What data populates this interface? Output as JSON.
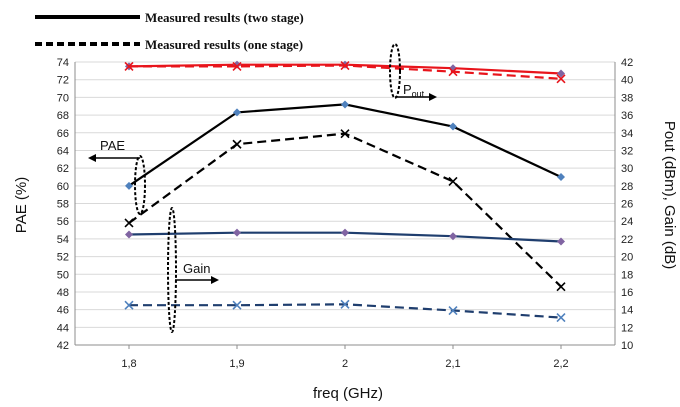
{
  "chart_data": {
    "type": "line",
    "xlabel": "freq (GHz)",
    "ylabel_left": "PAE (%)",
    "ylabel_right": "Pout (dBm), Gain (dB)",
    "x": [
      1.8,
      1.9,
      2.0,
      2.1,
      2.2
    ],
    "x_tick_labels": [
      "1,8",
      "1,9",
      "2",
      "2,1",
      "2,2"
    ],
    "xlim": [
      1.75,
      2.25
    ],
    "ylim_left": [
      42,
      74
    ],
    "ylim_right": [
      10,
      42
    ],
    "left_ticks": [
      "42",
      "44",
      "46",
      "48",
      "50",
      "52",
      "54",
      "56",
      "58",
      "60",
      "62",
      "64",
      "66",
      "68",
      "70",
      "72",
      "74"
    ],
    "right_ticks": [
      "10",
      "12",
      "14",
      "16",
      "18",
      "20",
      "22",
      "24",
      "26",
      "28",
      "30",
      "32",
      "34",
      "36",
      "38",
      "40",
      "42"
    ],
    "grid": "horizontal",
    "legend": [
      {
        "label": "Measured results (two stage)",
        "style": "solid"
      },
      {
        "label": "Measured results (one stage)",
        "style": "dashed"
      }
    ],
    "annotations": [
      {
        "text": "PAE"
      },
      {
        "text": "P",
        "sub": "out"
      },
      {
        "text": "Gain"
      }
    ],
    "series": [
      {
        "key": "pae_two",
        "axis": "left",
        "style": "solid",
        "color": "#000000",
        "marker": "diamond",
        "marker_color": "#4f81bd",
        "values": [
          60,
          68.3,
          69.2,
          66.7,
          61
        ]
      },
      {
        "key": "pae_one",
        "axis": "left",
        "style": "dashed",
        "color": "#000000",
        "marker": "x",
        "marker_color": "#000000",
        "values": [
          55.8,
          64.7,
          65.9,
          60.5,
          48.6
        ]
      },
      {
        "key": "pout_two",
        "axis": "right",
        "style": "solid",
        "color": "#e8141b",
        "marker": "diamond",
        "marker_color": "#8064a2",
        "values": [
          41.5,
          41.7,
          41.7,
          41.3,
          40.7
        ]
      },
      {
        "key": "pout_one",
        "axis": "right",
        "style": "dashed",
        "color": "#e8141b",
        "marker": "x",
        "marker_color": "#e8141b",
        "values": [
          41.5,
          41.5,
          41.6,
          40.9,
          40.1
        ]
      },
      {
        "key": "gain_two",
        "axis": "right",
        "style": "solid",
        "color": "#1f3e6e",
        "marker": "diamond",
        "marker_color": "#8064a2",
        "values": [
          22.5,
          22.7,
          22.7,
          22.3,
          21.7
        ]
      },
      {
        "key": "gain_one",
        "axis": "right",
        "style": "dashed",
        "color": "#1f3e6e",
        "marker": "x",
        "marker_color": "#4f81bd",
        "values": [
          14.5,
          14.5,
          14.6,
          13.9,
          13.1
        ]
      }
    ]
  }
}
